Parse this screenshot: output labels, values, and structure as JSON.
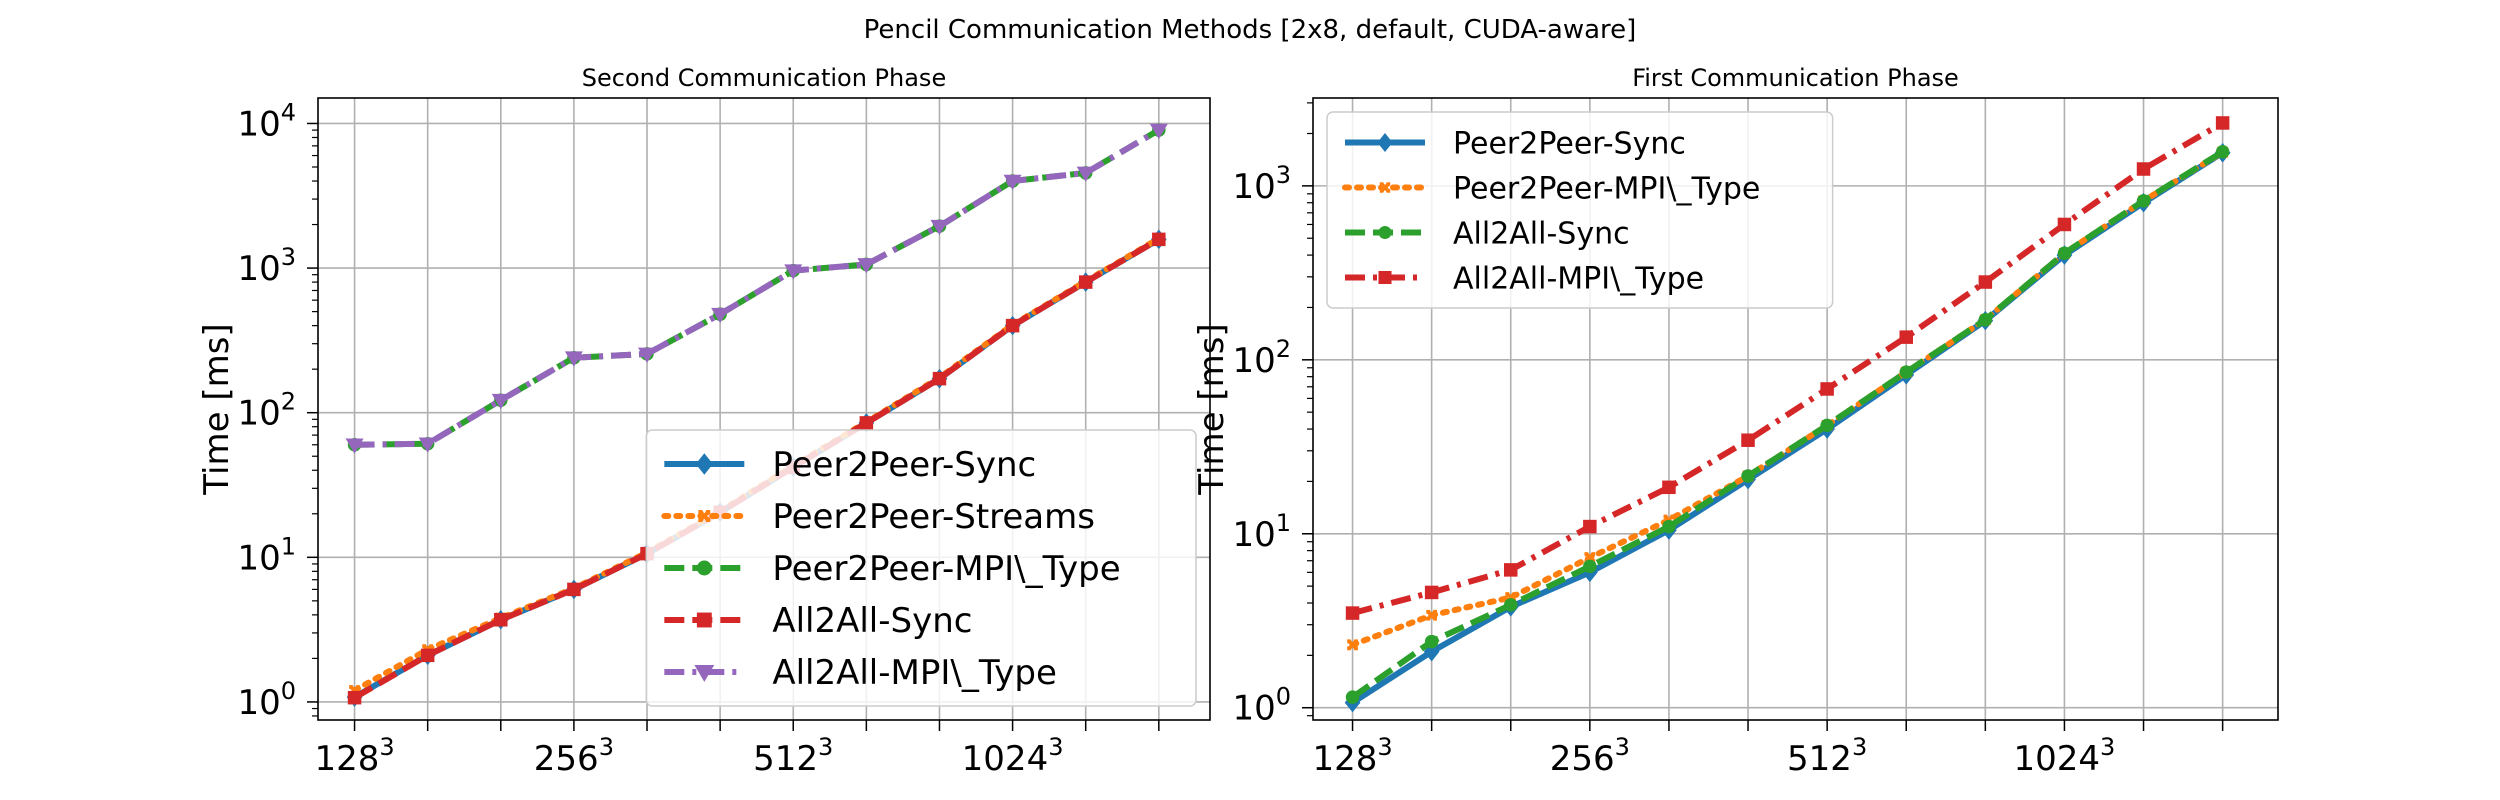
{
  "figure": {
    "title": "Pencil Communication Methods [2x8, default, CUDA-aware]"
  },
  "chart_data": [
    {
      "type": "line",
      "title": "Second Communication Phase",
      "xlabel": "",
      "ylabel": "Time [ms]",
      "yscale": "log",
      "ylim": [
        0.75,
        15000
      ],
      "xlim": [
        -0.5,
        11.7
      ],
      "x": [
        0,
        1,
        2,
        3,
        4,
        5,
        6,
        7,
        8,
        9,
        10,
        11
      ],
      "xtick_positions": [
        0,
        3,
        6,
        9
      ],
      "xtick_labels": [
        {
          "base": "128",
          "exp": "3"
        },
        {
          "base": "256",
          "exp": "3"
        },
        {
          "base": "512",
          "exp": "3"
        },
        {
          "base": "1024",
          "exp": "3"
        }
      ],
      "ytick_values": [
        1,
        10,
        100,
        1000,
        10000
      ],
      "ytick_labels": [
        {
          "base": "10",
          "exp": "0"
        },
        {
          "base": "10",
          "exp": "1"
        },
        {
          "base": "10",
          "exp": "2"
        },
        {
          "base": "10",
          "exp": "3"
        },
        {
          "base": "10",
          "exp": "4"
        }
      ],
      "grid": true,
      "legend_position": "lower-right",
      "series": [
        {
          "name": "Peer2Peer-Sync",
          "color": "#1f77b4",
          "dash": "solid",
          "marker": "diamond",
          "values": [
            1.08,
            2.1,
            3.7,
            6.0,
            10.6,
            20.5,
            42,
            85,
            172,
            400,
            800,
            1580
          ]
        },
        {
          "name": "Peer2Peer-Streams",
          "color": "#ff7f0e",
          "dash": "dotted",
          "marker": "x",
          "values": [
            1.2,
            2.3,
            3.8,
            6.1,
            10.8,
            20.8,
            43,
            86,
            175,
            405,
            810,
            1600
          ]
        },
        {
          "name": "Peer2Peer-MPI\\_Type",
          "color": "#2ca02c",
          "dash": "dashed",
          "marker": "circle",
          "values": [
            60,
            61,
            122,
            240,
            255,
            480,
            960,
            1060,
            1950,
            4000,
            4550,
            9000
          ]
        },
        {
          "name": "All2All-Sync",
          "color": "#d62728",
          "dash": "dashed",
          "marker": "square",
          "values": [
            1.07,
            2.1,
            3.7,
            6.0,
            10.6,
            20.5,
            42,
            85,
            172,
            400,
            800,
            1580
          ]
        },
        {
          "name": "All2All-MPI\\_Type",
          "color": "#9467bd",
          "dash": "dashdot",
          "marker": "triangle-down",
          "values": [
            60,
            61,
            122,
            240,
            255,
            480,
            960,
            1060,
            1950,
            4000,
            4550,
            9000
          ]
        }
      ]
    },
    {
      "type": "line",
      "title": "First Communication Phase",
      "xlabel": "",
      "ylabel": "Time [ms]",
      "yscale": "log",
      "ylim": [
        0.85,
        3200
      ],
      "xlim": [
        -0.5,
        11.7
      ],
      "x": [
        0,
        1,
        2,
        3,
        4,
        5,
        6,
        7,
        8,
        9,
        10,
        11
      ],
      "xtick_positions": [
        0,
        3,
        6,
        9
      ],
      "xtick_labels": [
        {
          "base": "128",
          "exp": "3"
        },
        {
          "base": "256",
          "exp": "3"
        },
        {
          "base": "512",
          "exp": "3"
        },
        {
          "base": "1024",
          "exp": "3"
        }
      ],
      "ytick_values": [
        1,
        10,
        100,
        1000
      ],
      "ytick_labels": [
        {
          "base": "10",
          "exp": "0"
        },
        {
          "base": "10",
          "exp": "1"
        },
        {
          "base": "10",
          "exp": "2"
        },
        {
          "base": "10",
          "exp": "3"
        }
      ],
      "grid": true,
      "legend_position": "upper-left",
      "series": [
        {
          "name": "Peer2Peer-Sync",
          "color": "#1f77b4",
          "dash": "solid",
          "marker": "diamond",
          "values": [
            1.07,
            2.1,
            3.8,
            6.0,
            10.5,
            20.5,
            40,
            82,
            168,
            400,
            800,
            1550
          ]
        },
        {
          "name": "Peer2Peer-MPI\\_Type",
          "color": "#ff7f0e",
          "dash": "dotted",
          "marker": "x",
          "values": [
            2.3,
            3.4,
            4.3,
            7.3,
            12.0,
            21.5,
            42,
            85,
            170,
            410,
            820,
            1560
          ]
        },
        {
          "name": "All2All-Sync",
          "color": "#2ca02c",
          "dash": "dashed",
          "marker": "circle",
          "values": [
            1.15,
            2.4,
            3.9,
            6.5,
            11.0,
            21.5,
            42,
            85,
            170,
            410,
            820,
            1570
          ]
        },
        {
          "name": "All2All-MPI\\_Type",
          "color": "#d62728",
          "dash": "dashdot",
          "marker": "square",
          "values": [
            3.5,
            4.6,
            6.2,
            11.0,
            18.5,
            34.5,
            68,
            135,
            280,
            600,
            1250,
            2300
          ]
        }
      ]
    }
  ]
}
